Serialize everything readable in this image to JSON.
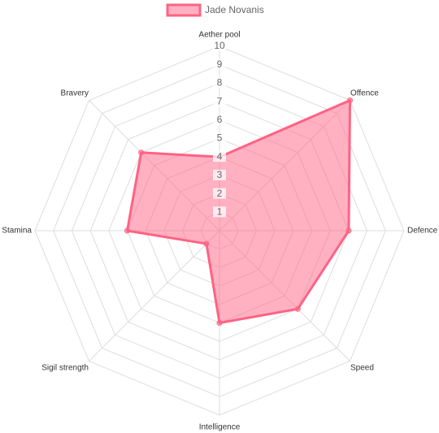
{
  "chart_data": {
    "type": "radar",
    "categories": [
      "Aether pool",
      "Offence",
      "Defence",
      "Speed",
      "Intelligence",
      "Sigil strength",
      "Stamina",
      "Bravery"
    ],
    "series": [
      {
        "name": "Jade Novanis",
        "color": "#ff6384",
        "values": [
          4,
          10,
          7,
          6,
          5,
          1,
          5,
          6
        ]
      }
    ],
    "rlim": [
      0,
      10
    ],
    "rticks": [
      1,
      2,
      3,
      4,
      5,
      6,
      7,
      8,
      9,
      10
    ],
    "grid": true,
    "legend": "top"
  }
}
